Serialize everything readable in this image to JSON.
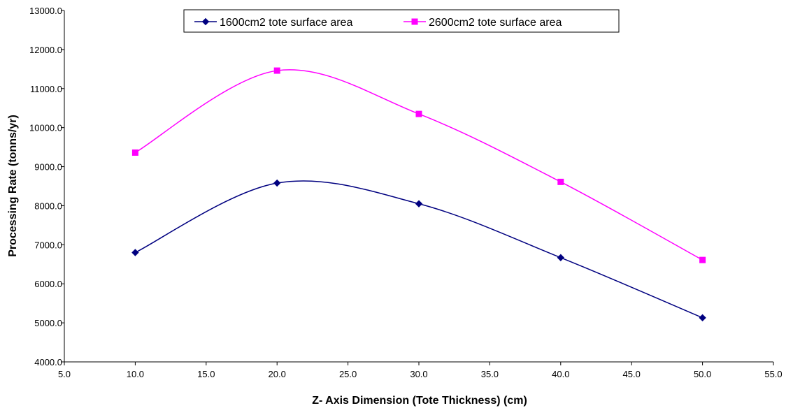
{
  "chart_data": {
    "type": "line",
    "title": "",
    "xlabel": "Z- Axis Dimension (Tote Thickness) (cm)",
    "ylabel": "Processing Rate (tonns/yr)",
    "xlim": [
      5.0,
      55.0
    ],
    "ylim": [
      4000.0,
      13000.0
    ],
    "x_ticks": [
      5.0,
      10.0,
      15.0,
      20.0,
      25.0,
      30.0,
      35.0,
      40.0,
      45.0,
      50.0,
      55.0
    ],
    "y_ticks": [
      4000.0,
      5000.0,
      6000.0,
      7000.0,
      8000.0,
      9000.0,
      10000.0,
      11000.0,
      12000.0,
      13000.0
    ],
    "x_tick_labels": [
      "5.0",
      "10.0",
      "15.0",
      "20.0",
      "25.0",
      "30.0",
      "35.0",
      "40.0",
      "45.0",
      "50.0",
      "55.0"
    ],
    "y_tick_labels": [
      "4000.0",
      "5000.0",
      "6000.0",
      "7000.0",
      "8000.0",
      "9000.0",
      "10000.0",
      "11000.0",
      "12000.0",
      "13000.0"
    ],
    "grid": false,
    "legend_position": "top",
    "smooth": true,
    "series": [
      {
        "name": "1600cm2 tote surface area",
        "color": "#000080",
        "marker": "diamond",
        "x": [
          10.0,
          20.0,
          30.0,
          40.0,
          50.0
        ],
        "y": [
          6800,
          8580,
          8050,
          6670,
          5130
        ]
      },
      {
        "name": "2600cm2 tote surface area",
        "color": "#ff00ff",
        "marker": "square",
        "x": [
          10.0,
          20.0,
          30.0,
          40.0,
          50.0
        ],
        "y": [
          9360,
          11460,
          10350,
          8610,
          6610
        ]
      }
    ]
  }
}
